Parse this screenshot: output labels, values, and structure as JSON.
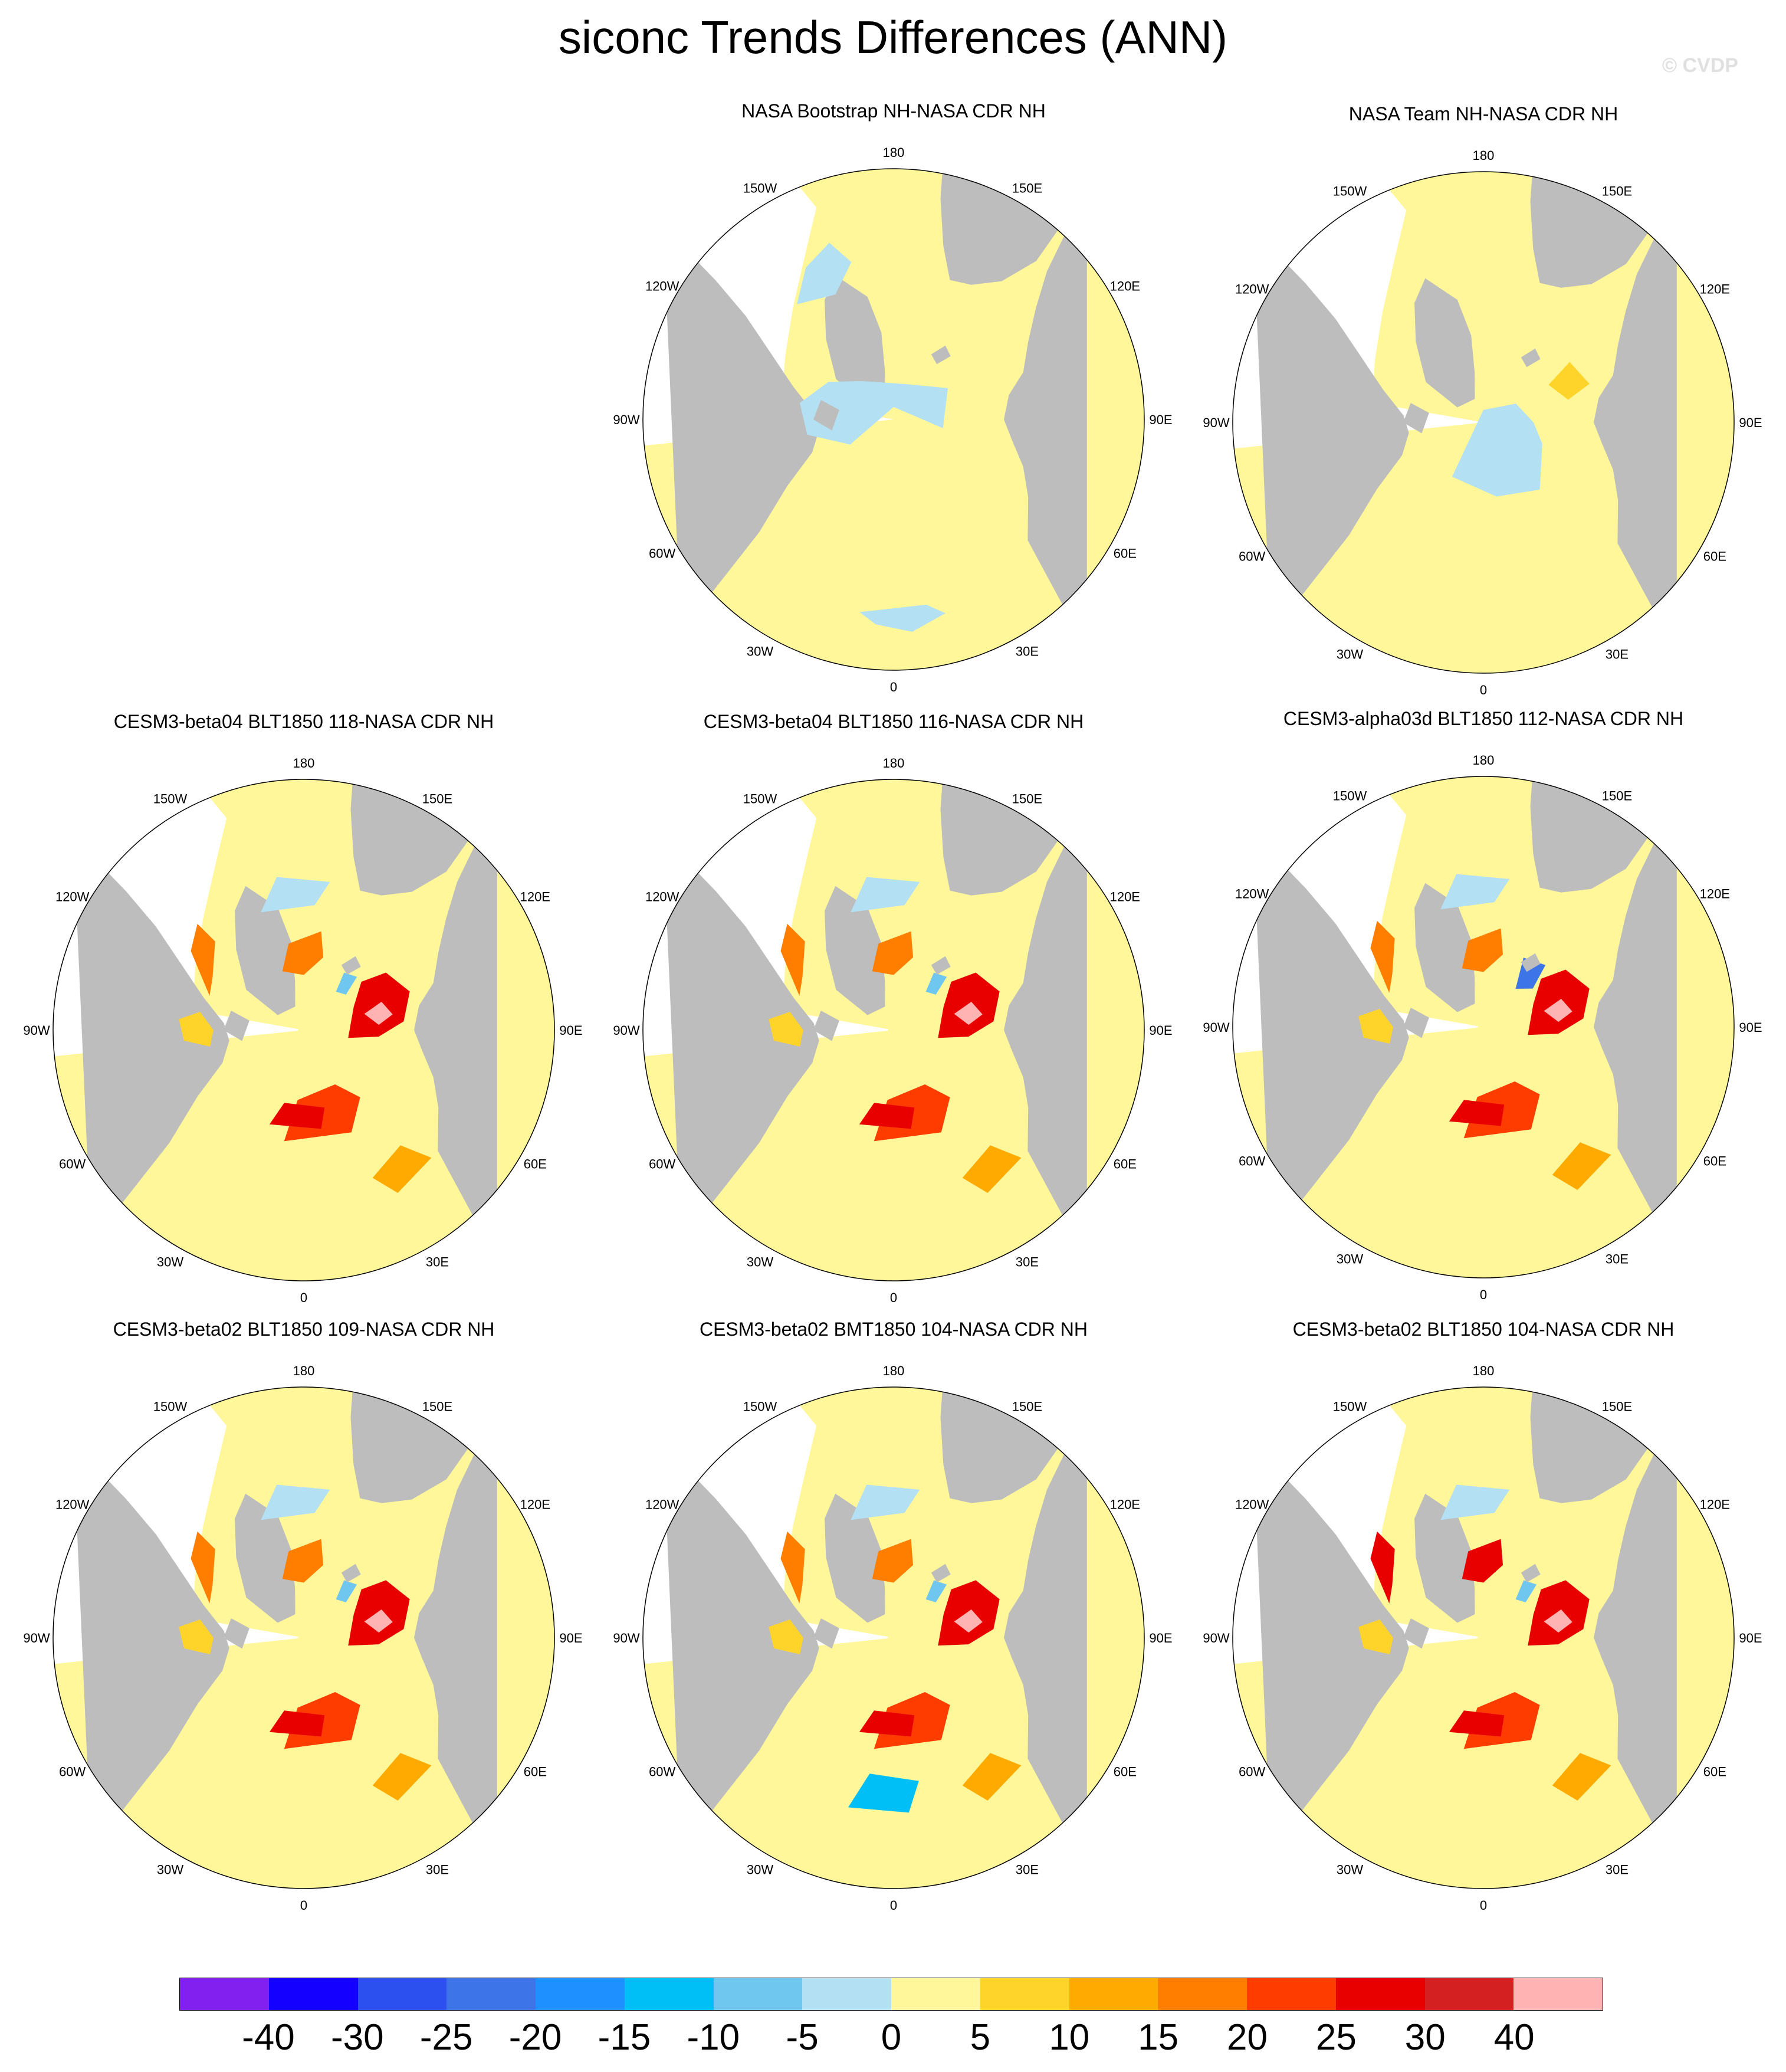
{
  "title": "siconc Trends Differences (ANN)",
  "watermark": "© CVDP",
  "colors": {
    "land": "#bdbdbd",
    "ocean_missing": "#ffffff",
    "zero_to_5": "#fff799",
    "neg_5_to_0": "#b3e0f2",
    "neg_10_to_5": "#6fc7ef",
    "neg_15_to_10": "#00bff7",
    "neg_20_to_15": "#1e90ff",
    "neg_25_to_20": "#3d74e8",
    "neg_30_to_25": "#2c4ff0",
    "neg_40_to_30": "#1400ff",
    "below_neg_40": "#8220f0",
    "5_to_10": "#ffd42a",
    "10_to_15": "#ffaa00",
    "15_to_20": "#ff7e00",
    "20_to_25": "#ff3c00",
    "25_to_30": "#e80000",
    "30_to_40": "#d42020",
    "above_40": "#ffb3b3"
  },
  "lon_labels": [
    "180",
    "150E",
    "120E",
    "90E",
    "60E",
    "30E",
    "0",
    "30W",
    "60W",
    "90W",
    "120W",
    "150W"
  ],
  "panels": [
    {
      "title": "NASA Bootstrap NH-NASA CDR NH",
      "pattern": "bootstrap"
    },
    {
      "title": "NASA Team NH-NASA CDR NH",
      "pattern": "team"
    },
    {
      "title": "CESM3-beta04 BLT1850 118-NASA CDR NH",
      "pattern": "model"
    },
    {
      "title": "CESM3-beta04 BLT1850 116-NASA CDR NH",
      "pattern": "model"
    },
    {
      "title": "CESM3-alpha03d BLT1850 112-NASA CDR NH",
      "pattern": "model_blue"
    },
    {
      "title": "CESM3-beta02 BLT1850 109-NASA CDR NH",
      "pattern": "model"
    },
    {
      "title": "CESM3-beta02 BMT1850 104-NASA CDR NH",
      "pattern": "model_pacific_blue"
    },
    {
      "title": "CESM3-beta02 BLT1850 104-NASA CDR NH",
      "pattern": "model_strong"
    }
  ],
  "colorbar": {
    "colors": [
      "#8220f0",
      "#1400ff",
      "#2c4ff0",
      "#3d74e8",
      "#1e90ff",
      "#00bff7",
      "#6fc7ef",
      "#b3e0f2",
      "#fff799",
      "#ffd42a",
      "#ffaa00",
      "#ff7e00",
      "#ff3c00",
      "#e80000",
      "#d42020",
      "#ffb3b3"
    ],
    "labels": [
      "-40",
      "-30",
      "-25",
      "-20",
      "-15",
      "-10",
      "-5",
      "0",
      "5",
      "10",
      "15",
      "20",
      "25",
      "30",
      "40"
    ]
  }
}
